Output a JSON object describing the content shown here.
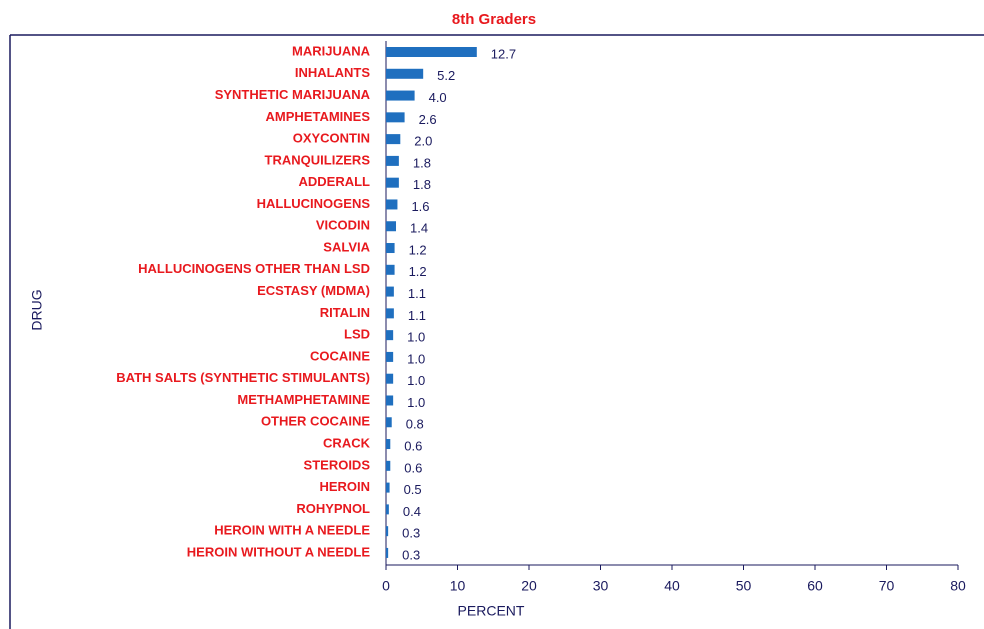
{
  "chart_data": {
    "type": "bar",
    "orientation": "horizontal",
    "title": "8th Graders",
    "x_label": "PERCENT",
    "y_label": "DRUG",
    "categories": [
      "MARIJUANA",
      "INHALANTS",
      "SYNTHETIC MARIJUANA",
      "AMPHETAMINES",
      "OXYCONTIN",
      "TRANQUILIZERS",
      "ADDERALL",
      "HALLUCINOGENS",
      "VICODIN",
      "SALVIA",
      "HALLUCINOGENS OTHER THAN LSD",
      "ECSTASY (MDMA)",
      "RITALIN",
      "LSD",
      "COCAINE",
      "BATH SALTS (SYNTHETIC STIMULANTS)",
      "METHAMPHETAMINE",
      "OTHER COCAINE",
      "CRACK",
      "STEROIDS",
      "HEROIN",
      "ROHYPNOL",
      "HEROIN WITH A NEEDLE",
      "HEROIN WITHOUT A NEEDLE"
    ],
    "values": [
      12.7,
      5.2,
      4.0,
      2.6,
      2.0,
      1.8,
      1.8,
      1.6,
      1.4,
      1.2,
      1.2,
      1.1,
      1.1,
      1.0,
      1.0,
      1.0,
      1.0,
      0.8,
      0.6,
      0.6,
      0.5,
      0.4,
      0.3,
      0.3
    ],
    "value_labels": [
      "12.7",
      "5.2",
      "4.0",
      "2.6",
      "2.0",
      "1.8",
      "1.8",
      "1.6",
      "1.4",
      "1.2",
      "1.2",
      "1.1",
      "1.1",
      "1.0",
      "1.0",
      "1.0",
      "1.0",
      "0.8",
      "0.6",
      "0.6",
      "0.5",
      "0.4",
      "0.3",
      "0.3"
    ],
    "color": "#1f6fbf",
    "xlim": [
      0,
      80
    ],
    "xticks": [
      0,
      10,
      20,
      30,
      40,
      50,
      60,
      70,
      80
    ]
  }
}
